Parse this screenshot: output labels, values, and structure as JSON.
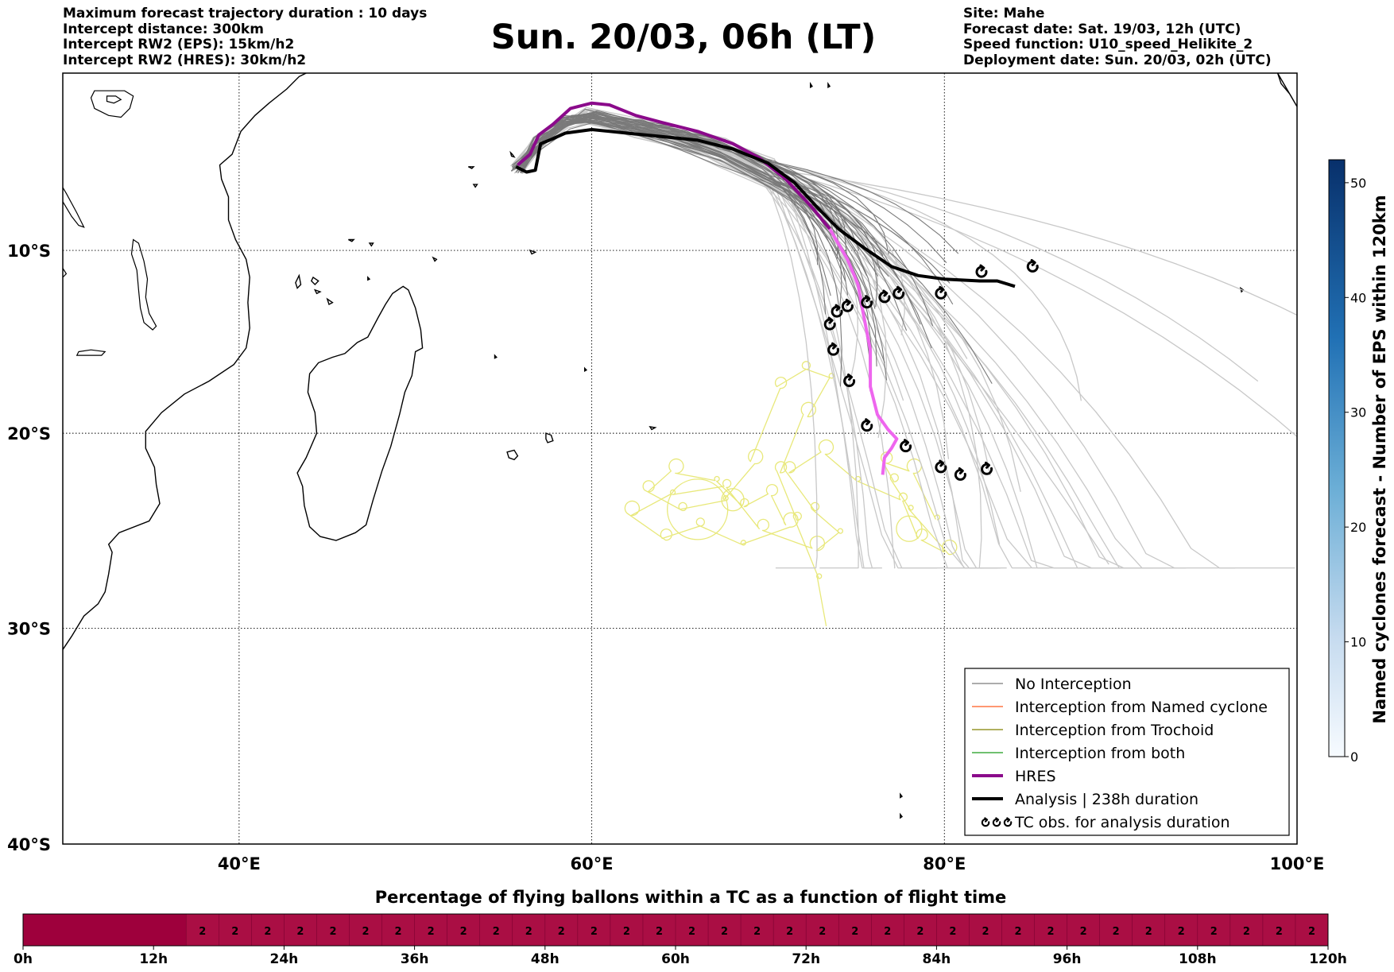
{
  "header": {
    "left": [
      "Maximum forecast trajectory duration : 10 days",
      "Intercept distance: 300km",
      "Intercept RW2 (EPS):  15km/h2",
      "Intercept RW2 (HRES): 30km/h2"
    ],
    "title": "Sun. 20/03, 06h (LT)",
    "right": [
      "Site: Mahe",
      "Forecast date: Sat. 19/03, 12h (UTC)",
      "Speed function: U10_speed_Helikite_2",
      "Deployment date: Sun. 20/03, 02h (UTC)"
    ]
  },
  "map": {
    "lon_range": [
      30,
      100
    ],
    "lat_range": [
      -40,
      0
    ],
    "lat_labels": [
      "10°S",
      "20°S",
      "30°S",
      "40°S"
    ],
    "lon_labels": [
      "40°E",
      "60°E",
      "80°E",
      "100°E"
    ],
    "gridlines": "dotted",
    "colors": {
      "no_interception": "#7a7a7a",
      "no_interception_light": "#c8c8c8",
      "named_cyclone": "#ff5a1e",
      "trochoid": "#808000",
      "both": "#1a9a1a",
      "hres": "#8b0a8b",
      "hres_late": "#ee66ee",
      "analysis": "#000000",
      "tc_obs_track": "#e8e87a"
    }
  },
  "legend": {
    "position": "lower-right",
    "items": [
      {
        "label": "No Interception",
        "color": "#7a7a7a",
        "style": "thin"
      },
      {
        "label": "Interception from Named cyclone",
        "color": "#ff5a1e",
        "style": "thin"
      },
      {
        "label": "Interception from Trochoid",
        "color": "#808000",
        "style": "thin"
      },
      {
        "label": "Interception from both",
        "color": "#1a9a1a",
        "style": "thin"
      },
      {
        "label": "HRES",
        "color": "#8b0a8b",
        "style": "thick"
      },
      {
        "label": "Analysis | 238h duration",
        "color": "#000000",
        "style": "thick"
      },
      {
        "label": "TC obs. for analysis duration",
        "color": "#000000",
        "style": "symbol"
      }
    ],
    "symbol_icon": "cyclone-symbol-icon"
  },
  "colorbar": {
    "label": "Named cyclones forecast - Number of EPS within 120km",
    "ticks": [
      "0",
      "10",
      "20",
      "30",
      "40",
      "50"
    ],
    "range": [
      0,
      52
    ],
    "colormap": "Blues"
  },
  "timebar": {
    "title": "Percentage of flying ballons within a TC as a function of flight time",
    "tick_labels": [
      "0h",
      "12h",
      "24h",
      "36h",
      "48h",
      "60h",
      "72h",
      "84h",
      "96h",
      "108h",
      "120h"
    ],
    "first_segment_end_h": 15,
    "value_label": "2",
    "step_h": 3,
    "colors": {
      "first": "#9e003c",
      "rest": "#aa0e44"
    }
  },
  "tracks": {
    "analysis": [
      [
        55.7,
        -5.3
      ],
      [
        56.3,
        -5.6
      ],
      [
        56.8,
        -5.5
      ],
      [
        57.1,
        -4.0
      ],
      [
        57.6,
        -3.8
      ],
      [
        58.5,
        -3.4
      ],
      [
        60.0,
        -3.2
      ],
      [
        62.0,
        -3.4
      ],
      [
        64.0,
        -3.6
      ],
      [
        66.0,
        -3.8
      ],
      [
        68.0,
        -4.3
      ],
      [
        70.0,
        -5.1
      ],
      [
        71.5,
        -6.2
      ],
      [
        72.8,
        -7.6
      ],
      [
        74.0,
        -8.8
      ],
      [
        75.5,
        -9.9
      ],
      [
        77.0,
        -10.9
      ],
      [
        78.5,
        -11.4
      ],
      [
        80.0,
        -11.6
      ],
      [
        82.0,
        -11.7
      ],
      [
        83.0,
        -11.7
      ],
      [
        84.0,
        -12.0
      ]
    ],
    "hres": [
      [
        55.8,
        -5.2
      ],
      [
        56.5,
        -4.6
      ],
      [
        57.0,
        -3.5
      ],
      [
        57.8,
        -2.9
      ],
      [
        58.8,
        -2.0
      ],
      [
        60.0,
        -1.7
      ],
      [
        61.0,
        -1.8
      ],
      [
        62.5,
        -2.4
      ],
      [
        64.0,
        -2.8
      ],
      [
        66.0,
        -3.3
      ],
      [
        68.0,
        -4.0
      ],
      [
        69.5,
        -4.8
      ],
      [
        71.0,
        -6.0
      ],
      [
        72.5,
        -7.6
      ],
      [
        73.5,
        -8.8
      ],
      [
        74.5,
        -10.5
      ],
      [
        75.1,
        -11.9
      ],
      [
        75.4,
        -13.5
      ],
      [
        75.8,
        -15.5
      ],
      [
        75.8,
        -17.5
      ],
      [
        76.2,
        -19.0
      ],
      [
        76.8,
        -19.8
      ],
      [
        77.3,
        -20.3
      ],
      [
        77.0,
        -20.8
      ],
      [
        76.6,
        -21.3
      ],
      [
        76.5,
        -22.2
      ]
    ],
    "hres_late_start_index": 14,
    "tc_obs": [
      [
        85.0,
        -10.9
      ],
      [
        82.1,
        -11.2
      ],
      [
        79.8,
        -12.4
      ],
      [
        77.4,
        -12.4
      ],
      [
        76.6,
        -12.6
      ],
      [
        75.6,
        -12.9
      ],
      [
        74.5,
        -13.1
      ],
      [
        73.9,
        -13.4
      ],
      [
        73.5,
        -14.1
      ],
      [
        73.7,
        -15.5
      ],
      [
        74.6,
        -17.2
      ],
      [
        75.6,
        -19.6
      ],
      [
        77.8,
        -20.7
      ],
      [
        79.8,
        -21.8
      ],
      [
        80.9,
        -22.2
      ],
      [
        82.4,
        -21.9
      ]
    ],
    "eps_dark_count": 34,
    "eps_light_count": 40
  },
  "land": {
    "africa_coast": [
      [
        29.8,
        -31.3
      ],
      [
        30.5,
        -30.4
      ],
      [
        31.2,
        -29.4
      ],
      [
        32.0,
        -28.8
      ],
      [
        32.4,
        -28.2
      ],
      [
        32.6,
        -27.3
      ],
      [
        32.8,
        -26.2
      ],
      [
        32.6,
        -25.8
      ],
      [
        33.2,
        -25.2
      ],
      [
        34.9,
        -24.6
      ],
      [
        35.5,
        -23.7
      ],
      [
        35.3,
        -22.7
      ],
      [
        35.2,
        -21.8
      ],
      [
        34.7,
        -20.8
      ],
      [
        34.7,
        -19.9
      ],
      [
        35.6,
        -18.9
      ],
      [
        36.9,
        -17.9
      ],
      [
        38.3,
        -17.2
      ],
      [
        39.7,
        -16.3
      ],
      [
        40.4,
        -15.4
      ],
      [
        40.6,
        -14.3
      ],
      [
        40.5,
        -12.9
      ],
      [
        40.6,
        -11.5
      ],
      [
        40.4,
        -10.5
      ],
      [
        39.8,
        -9.4
      ],
      [
        39.4,
        -8.3
      ],
      [
        39.4,
        -7.0
      ],
      [
        39.0,
        -6.0
      ],
      [
        38.9,
        -5.2
      ],
      [
        39.6,
        -4.6
      ],
      [
        40.1,
        -3.3
      ],
      [
        40.9,
        -2.4
      ],
      [
        41.7,
        -1.7
      ],
      [
        42.7,
        -0.9
      ],
      [
        43.4,
        -0.2
      ],
      [
        43.8,
        0.0
      ]
    ],
    "madagascar": [
      [
        49.3,
        -12.0
      ],
      [
        49.6,
        -12.2
      ],
      [
        50.0,
        -13.2
      ],
      [
        50.3,
        -14.4
      ],
      [
        50.4,
        -15.4
      ],
      [
        50.0,
        -15.6
      ],
      [
        49.8,
        -16.9
      ],
      [
        49.4,
        -17.8
      ],
      [
        49.1,
        -19.0
      ],
      [
        48.6,
        -20.7
      ],
      [
        48.1,
        -22.0
      ],
      [
        47.6,
        -23.5
      ],
      [
        47.2,
        -24.8
      ],
      [
        46.6,
        -25.2
      ],
      [
        45.5,
        -25.6
      ],
      [
        44.6,
        -25.4
      ],
      [
        44.0,
        -24.9
      ],
      [
        43.7,
        -23.8
      ],
      [
        43.6,
        -22.8
      ],
      [
        43.3,
        -22.1
      ],
      [
        43.8,
        -21.3
      ],
      [
        44.4,
        -20.0
      ],
      [
        44.3,
        -18.9
      ],
      [
        43.9,
        -17.8
      ],
      [
        44.0,
        -16.8
      ],
      [
        44.5,
        -16.2
      ],
      [
        45.3,
        -15.9
      ],
      [
        46.0,
        -15.7
      ],
      [
        46.7,
        -15.1
      ],
      [
        47.3,
        -14.8
      ],
      [
        47.9,
        -13.7
      ],
      [
        48.3,
        -13.0
      ],
      [
        48.7,
        -12.4
      ],
      [
        49.3,
        -12.0
      ]
    ],
    "lake_victoria": [
      [
        31.8,
        -1.0
      ],
      [
        32.5,
        -1.0
      ],
      [
        33.5,
        -1.0
      ],
      [
        34.0,
        -1.3
      ],
      [
        33.8,
        -2.0
      ],
      [
        33.3,
        -2.5
      ],
      [
        32.6,
        -2.4
      ],
      [
        31.8,
        -2.0
      ],
      [
        31.6,
        -1.4
      ]
    ],
    "lake_tanganyika": [
      [
        29.2,
        -3.3
      ],
      [
        29.4,
        -4.5
      ],
      [
        29.6,
        -5.8
      ],
      [
        30.2,
        -6.8
      ],
      [
        30.8,
        -7.9
      ],
      [
        31.2,
        -8.7
      ],
      [
        30.9,
        -8.6
      ],
      [
        30.5,
        -8.1
      ],
      [
        29.9,
        -7.1
      ],
      [
        29.6,
        -6.4
      ],
      [
        29.3,
        -5.1
      ],
      [
        29.0,
        -4.0
      ]
    ],
    "lake_malawi": [
      [
        34.0,
        -9.4
      ],
      [
        34.3,
        -9.6
      ],
      [
        34.6,
        -10.6
      ],
      [
        34.8,
        -11.6
      ],
      [
        34.7,
        -12.6
      ],
      [
        34.9,
        -13.5
      ],
      [
        35.3,
        -14.2
      ],
      [
        35.1,
        -14.4
      ],
      [
        34.6,
        -14.0
      ],
      [
        34.4,
        -13.2
      ],
      [
        34.3,
        -12.2
      ],
      [
        34.2,
        -11.1
      ],
      [
        33.9,
        -10.2
      ]
    ],
    "lake_bangweulu": [
      [
        29.5,
        -11.1
      ],
      [
        30.0,
        -11.0
      ],
      [
        30.2,
        -11.3
      ],
      [
        29.9,
        -11.6
      ],
      [
        29.6,
        -11.5
      ]
    ],
    "lake_kyoga": [
      [
        32.5,
        -1.3
      ],
      [
        33.0,
        -1.3
      ],
      [
        33.3,
        -1.5
      ],
      [
        32.9,
        -1.7
      ],
      [
        32.5,
        -1.6
      ]
    ],
    "lake_cahora": [
      [
        30.9,
        -15.6
      ],
      [
        31.6,
        -15.5
      ],
      [
        32.4,
        -15.6
      ],
      [
        32.2,
        -15.8
      ],
      [
        31.4,
        -15.8
      ],
      [
        30.8,
        -15.8
      ]
    ],
    "islands": [
      [
        [
          44.2,
          -11.5
        ],
        [
          44.5,
          -11.7
        ],
        [
          44.3,
          -11.9
        ],
        [
          44.1,
          -11.7
        ]
      ],
      [
        [
          43.2,
          -11.8
        ],
        [
          43.4,
          -11.4
        ],
        [
          43.5,
          -11.9
        ],
        [
          43.3,
          -12.1
        ]
      ],
      [
        [
          45.0,
          -12.7
        ],
        [
          45.3,
          -12.9
        ],
        [
          45.1,
          -13.0
        ]
      ],
      [
        [
          44.3,
          -12.2
        ],
        [
          44.6,
          -12.3
        ],
        [
          44.4,
          -12.4
        ]
      ],
      [
        [
          55.2,
          -21.0
        ],
        [
          55.6,
          -20.9
        ],
        [
          55.8,
          -21.2
        ],
        [
          55.6,
          -21.4
        ],
        [
          55.3,
          -21.3
        ]
      ],
      [
        [
          57.4,
          -20.0
        ],
        [
          57.7,
          -20.1
        ],
        [
          57.8,
          -20.4
        ],
        [
          57.5,
          -20.5
        ],
        [
          57.4,
          -20.3
        ]
      ],
      [
        [
          63.3,
          -19.65
        ],
        [
          63.6,
          -19.7
        ],
        [
          63.4,
          -19.8
        ]
      ],
      [
        [
          55.4,
          -4.5
        ],
        [
          55.5,
          -4.6
        ],
        [
          55.6,
          -4.75
        ],
        [
          55.45,
          -4.7
        ]
      ],
      [
        [
          46.2,
          -9.4
        ],
        [
          46.5,
          -9.4
        ],
        [
          46.4,
          -9.5
        ]
      ],
      [
        [
          47.4,
          -9.6
        ],
        [
          47.6,
          -9.6
        ],
        [
          47.5,
          -9.75
        ]
      ],
      [
        [
          51.0,
          -10.4
        ],
        [
          51.2,
          -10.5
        ],
        [
          51.1,
          -10.6
        ]
      ],
      [
        [
          53.0,
          -5.3
        ],
        [
          53.3,
          -5.3
        ],
        [
          53.2,
          -5.4
        ]
      ],
      [
        [
          53.3,
          -6.3
        ],
        [
          53.5,
          -6.3
        ],
        [
          53.4,
          -6.45
        ]
      ],
      [
        [
          56.5,
          -10.0
        ],
        [
          56.8,
          -10.1
        ],
        [
          56.6,
          -10.2
        ]
      ],
      [
        [
          54.5,
          -15.8
        ],
        [
          54.6,
          -15.9
        ],
        [
          54.5,
          -15.95
        ]
      ],
      [
        [
          59.6,
          -16.5
        ],
        [
          59.7,
          -16.6
        ],
        [
          59.6,
          -16.65
        ]
      ],
      [
        [
          47.3,
          -11.5
        ],
        [
          47.4,
          -11.6
        ],
        [
          47.3,
          -11.65
        ]
      ],
      [
        [
          72.4,
          -0.6
        ],
        [
          72.5,
          -0.75
        ],
        [
          72.4,
          -0.8
        ]
      ],
      [
        [
          73.4,
          -0.6
        ],
        [
          73.5,
          -0.75
        ],
        [
          73.4,
          -0.8
        ]
      ],
      [
        [
          96.8,
          -12.1
        ],
        [
          96.95,
          -12.2
        ],
        [
          96.85,
          -12.3
        ]
      ],
      [
        [
          77.5,
          -37.8
        ],
        [
          77.6,
          -37.9
        ],
        [
          77.5,
          -37.95
        ]
      ],
      [
        [
          77.5,
          -38.7
        ],
        [
          77.6,
          -38.8
        ],
        [
          77.5,
          -38.85
        ]
      ],
      [
        [
          98.9,
          0.0
        ],
        [
          99.1,
          -0.6
        ],
        [
          99.6,
          -1.2
        ],
        [
          100.0,
          -1.9
        ]
      ]
    ]
  }
}
